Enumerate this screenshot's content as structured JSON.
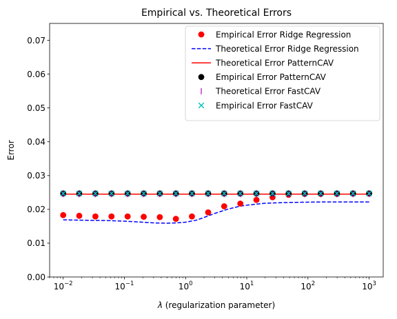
{
  "chart_data": {
    "type": "line",
    "title": "Empirical vs. Theoretical Errors",
    "xlabel_symbol": "λ",
    "xlabel_rest": " (regularization parameter)",
    "ylabel": "Error",
    "xscale": "log",
    "xlim": [
      0.006,
      1700
    ],
    "ylim": [
      0,
      0.075
    ],
    "grid": false,
    "legend_position": "top-right",
    "y_ticks": [
      0.0,
      0.01,
      0.02,
      0.03,
      0.04,
      0.05,
      0.06,
      0.07
    ],
    "y_tick_labels": [
      "0.00",
      "0.01",
      "0.02",
      "0.03",
      "0.04",
      "0.05",
      "0.06",
      "0.07"
    ],
    "x_ticks": [
      {
        "value": 0.01,
        "base": "10",
        "exp": "−2"
      },
      {
        "value": 0.1,
        "base": "10",
        "exp": "−1"
      },
      {
        "value": 1,
        "base": "10",
        "exp": "0"
      },
      {
        "value": 10,
        "base": "10",
        "exp": "1"
      },
      {
        "value": 100,
        "base": "10",
        "exp": "2"
      },
      {
        "value": 1000,
        "base": "10",
        "exp": "3"
      }
    ],
    "x": [
      0.01,
      0.0183,
      0.0336,
      0.0616,
      0.113,
      0.207,
      0.379,
      0.695,
      1.27,
      2.34,
      4.28,
      7.85,
      14.4,
      26.4,
      48.3,
      88.6,
      162,
      298,
      546,
      1000
    ],
    "series": [
      {
        "name": "Empirical Error Ridge Regression",
        "style": "marker-circle",
        "color": "#ff0000",
        "values": [
          0.0183,
          0.0181,
          0.0179,
          0.0179,
          0.0179,
          0.0178,
          0.0177,
          0.0172,
          0.0179,
          0.0191,
          0.0209,
          0.0217,
          0.0228,
          0.0236,
          0.0243,
          0.0246,
          0.0246,
          0.0246,
          0.0247,
          0.0247
        ]
      },
      {
        "name": "Theoretical Error Ridge Regression",
        "style": "dashed-line",
        "color": "#0000ff",
        "x": [
          0.01,
          0.02,
          0.05,
          0.1,
          0.2,
          0.3,
          0.5,
          0.7,
          1.0,
          1.5,
          2.0,
          3.0,
          5.0,
          8.0,
          12.0,
          20.0,
          40.0,
          80.0,
          200.0,
          1000.0
        ],
        "values": [
          0.0169,
          0.0168,
          0.0167,
          0.0165,
          0.0162,
          0.016,
          0.0159,
          0.016,
          0.0162,
          0.0168,
          0.0176,
          0.0188,
          0.0201,
          0.021,
          0.0214,
          0.0218,
          0.022,
          0.0221,
          0.0222,
          0.0222
        ]
      },
      {
        "name": "Theoretical Error PatternCAV",
        "style": "solid-line",
        "color": "#ff0000",
        "x": [
          0.01,
          1000
        ],
        "values": [
          0.0245,
          0.0245
        ]
      },
      {
        "name": "Empirical Error PatternCAV",
        "style": "marker-circle",
        "color": "#000000",
        "values": [
          0.0247,
          0.0247,
          0.0247,
          0.0247,
          0.0247,
          0.0247,
          0.0247,
          0.0247,
          0.0247,
          0.0247,
          0.0247,
          0.0247,
          0.0247,
          0.0247,
          0.0247,
          0.0247,
          0.0247,
          0.0247,
          0.0247,
          0.0247
        ]
      },
      {
        "name": "Theoretical Error FastCAV",
        "style": "marker-vline",
        "color": "#bf00bf",
        "values": [
          0.0245,
          0.0245,
          0.0245,
          0.0245,
          0.0245,
          0.0245,
          0.0245,
          0.0245,
          0.0245,
          0.0245,
          0.0245,
          0.0245,
          0.0245,
          0.0245,
          0.0245,
          0.0245,
          0.0245,
          0.0245,
          0.0245,
          0.0245
        ]
      },
      {
        "name": "Empirical Error FastCAV",
        "style": "marker-x",
        "color": "#00bfbf",
        "values": [
          0.0247,
          0.0247,
          0.0247,
          0.0247,
          0.0247,
          0.0247,
          0.0247,
          0.0247,
          0.0247,
          0.0247,
          0.0247,
          0.0247,
          0.0247,
          0.0247,
          0.0247,
          0.0247,
          0.0247,
          0.0247,
          0.0247,
          0.0247
        ]
      }
    ]
  }
}
